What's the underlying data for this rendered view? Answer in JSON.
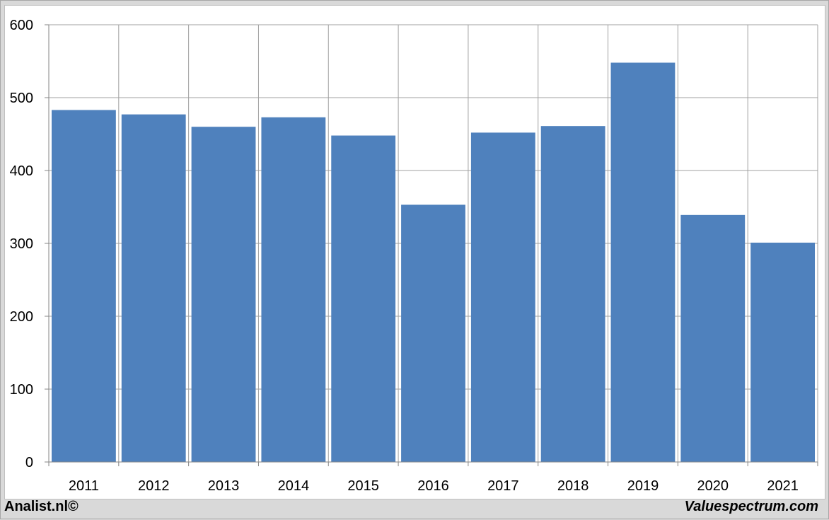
{
  "footer": {
    "left_text": "Analist.nl©",
    "right_text": "Valuespectrum.com"
  },
  "colors": {
    "bar": "#4f81bd",
    "grid": "#a0a0a0",
    "axis": "#868686",
    "text": "#000000"
  },
  "chart_data": {
    "type": "bar",
    "title": "",
    "xlabel": "",
    "ylabel": "",
    "categories": [
      "2011",
      "2012",
      "2013",
      "2014",
      "2015",
      "2016",
      "2017",
      "2018",
      "2019",
      "2020",
      "2021"
    ],
    "values": [
      483,
      477,
      460,
      473,
      448,
      353,
      452,
      461,
      548,
      339,
      301
    ],
    "ylim": [
      0,
      600
    ],
    "yticks": [
      0,
      100,
      200,
      300,
      400,
      500,
      600
    ],
    "grid": true,
    "legend": "none"
  }
}
